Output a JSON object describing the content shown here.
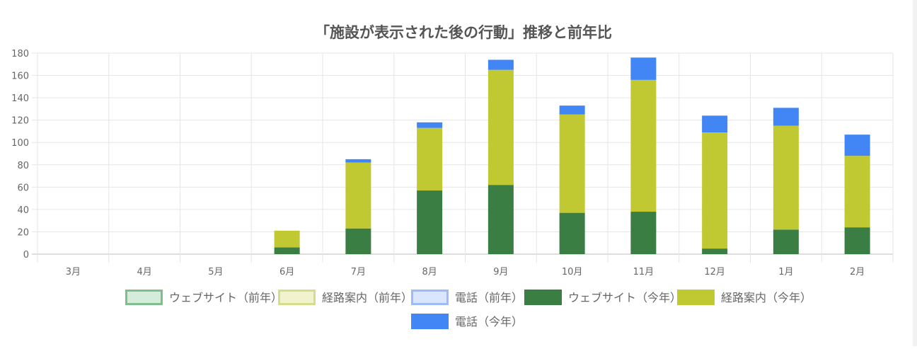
{
  "chart_data": {
    "type": "bar",
    "stacked": true,
    "title": "「施設が表示された後の行動」推移と前年比",
    "categories": [
      "3月",
      "4月",
      "5月",
      "6月",
      "7月",
      "8月",
      "9月",
      "10月",
      "11月",
      "12月",
      "1月",
      "2月"
    ],
    "ylim": [
      0,
      180
    ],
    "yticks": [
      0,
      20,
      40,
      60,
      80,
      100,
      120,
      140,
      160,
      180
    ],
    "grid": true,
    "legend_position": "bottom",
    "series": [
      {
        "name": "ウェブサイト（前年）",
        "values": [
          0,
          0,
          0,
          0,
          0,
          0,
          0,
          0,
          0,
          0,
          0,
          0
        ],
        "color": "#d4ecd9",
        "border": "#7fbf8e"
      },
      {
        "name": "経路案内（前年）",
        "values": [
          0,
          0,
          0,
          0,
          0,
          0,
          0,
          0,
          0,
          0,
          0,
          0
        ],
        "color": "#f1f3cf",
        "border": "#d6dd8a"
      },
      {
        "name": "電話（前年）",
        "values": [
          0,
          0,
          0,
          0,
          0,
          0,
          0,
          0,
          0,
          0,
          0,
          0
        ],
        "color": "#d9e6fd",
        "border": "#9dbcf7"
      },
      {
        "name": "ウェブサイト（今年）",
        "values": [
          0,
          0,
          0,
          6,
          23,
          57,
          62,
          37,
          38,
          5,
          22,
          24
        ],
        "color": "#3b7e44",
        "border": "#3b7e44"
      },
      {
        "name": "経路案内（今年）",
        "values": [
          0,
          0,
          0,
          15,
          59,
          56,
          103,
          88,
          118,
          104,
          93,
          64
        ],
        "color": "#c0c932",
        "border": "#c0c932"
      },
      {
        "name": "電話（今年）",
        "values": [
          0,
          0,
          0,
          0,
          3,
          5,
          9,
          8,
          20,
          15,
          16,
          19
        ],
        "color": "#4285f4",
        "border": "#4285f4"
      }
    ]
  }
}
